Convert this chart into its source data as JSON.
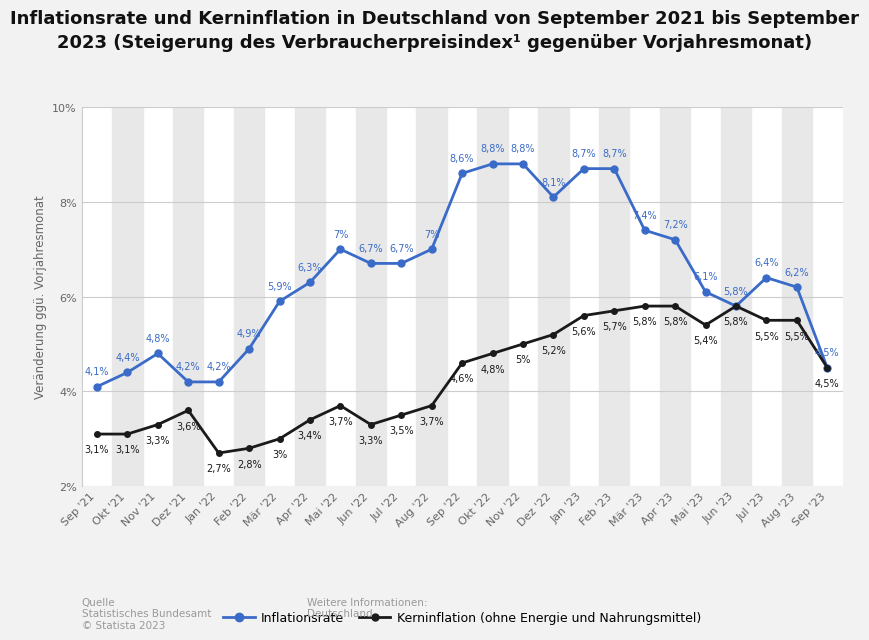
{
  "title": "Inflationsrate und Kerninflation in Deutschland von September 2021 bis September\n2023 (Steigerung des Verbraucherpreisindex¹ gegenüber Vorjahresmonat)",
  "ylabel": "Veränderung ggü. Vorjahresmonat",
  "background_color": "#f2f2f2",
  "plot_background_color": "#ffffff",
  "categories": [
    "Sep '21",
    "Okt '21",
    "Nov '21",
    "Dez '21",
    "Jan '22",
    "Feb '22",
    "Mär '22",
    "Apr '22",
    "Mai '22",
    "Jun '22",
    "Jul '22",
    "Aug '22",
    "Sep '22",
    "Okt '22",
    "Nov '22",
    "Dez '22",
    "Jan '23",
    "Feb '23",
    "Mär '23",
    "Apr '23",
    "Mai '23",
    "Jun '23",
    "Jul '23",
    "Aug '23",
    "Sep '23"
  ],
  "inflation": [
    4.1,
    4.4,
    4.8,
    4.2,
    4.2,
    4.9,
    5.9,
    6.3,
    7.0,
    6.7,
    6.7,
    7.0,
    8.6,
    8.8,
    8.8,
    8.1,
    8.7,
    8.7,
    7.4,
    7.2,
    6.1,
    5.8,
    6.4,
    6.2,
    4.5
  ],
  "inflation_labels": [
    "4,1%",
    "4,4%",
    "4,8%",
    "4,2%",
    "4,2%",
    "4,9%",
    "5,9%",
    "6,3%",
    "7%",
    "6,7%",
    "6,7%",
    "7%",
    "8,6%",
    "8,8%",
    "8,8%",
    "8,1%",
    "8,7%",
    "8,7%",
    "7,4%",
    "7,2%",
    "6,1%",
    "5,8%",
    "6,4%",
    "6,2%",
    "4,5%"
  ],
  "kerninflation": [
    3.1,
    3.1,
    3.3,
    3.6,
    2.7,
    2.8,
    3.0,
    3.4,
    3.7,
    3.3,
    3.5,
    3.7,
    4.6,
    4.8,
    5.0,
    5.2,
    5.6,
    5.7,
    5.8,
    5.8,
    5.4,
    5.8,
    5.5,
    5.5,
    4.5
  ],
  "kerninflation_labels": [
    "3,1%",
    "3,1%",
    "3,3%",
    "3,6%",
    "2,7%",
    "2,8%",
    "3%",
    "3,4%",
    "3,7%",
    "3,3%",
    "3,5%",
    "3,7%",
    "4,6%",
    "4,8%",
    "5%",
    "5,2%",
    "5,6%",
    "5,7%",
    "5,8%",
    "5,8%",
    "5,4%",
    "5,8%",
    "5,5%",
    "5,5%",
    "4,5%"
  ],
  "inflation_color": "#3a6bc8",
  "kerninflation_color": "#1a1a1a",
  "ylim": [
    2.0,
    10.0
  ],
  "yticks": [
    2,
    4,
    6,
    8,
    10
  ],
  "ytick_labels": [
    "2%",
    "4%",
    "6%",
    "8%",
    "10%"
  ],
  "source_text": "Quelle\nStatistisches Bundesamt\n© Statista 2023",
  "info_text": "Weitere Informationen:\nDeutschland",
  "legend_label_inflation": "Inflationsrate",
  "legend_label_kern": "Kerninflation (ohne Energie und Nahrungsmittel)",
  "title_fontsize": 13.0,
  "axis_label_fontsize": 8.5,
  "tick_fontsize": 8.0,
  "data_label_fontsize": 7.0,
  "legend_fontsize": 9.0,
  "footer_fontsize": 7.5,
  "stripe_color": "#e8e8e8",
  "grid_color": "#cccccc"
}
